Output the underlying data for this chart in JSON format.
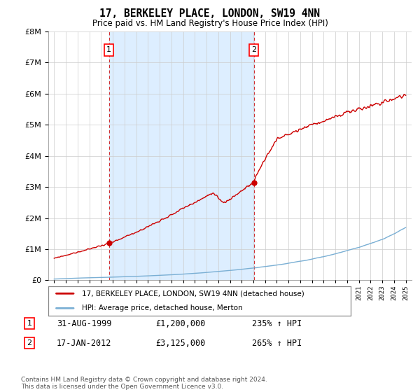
{
  "title": "17, BERKELEY PLACE, LONDON, SW19 4NN",
  "subtitle": "Price paid vs. HM Land Registry's House Price Index (HPI)",
  "legend_line1": "17, BERKELEY PLACE, LONDON, SW19 4NN (detached house)",
  "legend_line2": "HPI: Average price, detached house, Merton",
  "annotation1_date": "31-AUG-1999",
  "annotation1_price": "£1,200,000",
  "annotation1_hpi": "235% ↑ HPI",
  "annotation2_date": "17-JAN-2012",
  "annotation2_price": "£3,125,000",
  "annotation2_hpi": "265% ↑ HPI",
  "footnote": "Contains HM Land Registry data © Crown copyright and database right 2024.\nThis data is licensed under the Open Government Licence v3.0.",
  "ylim": [
    0,
    8000000
  ],
  "red_color": "#cc0000",
  "blue_color": "#7aafd4",
  "marker1_x": 1999.67,
  "marker1_y": 1200000,
  "marker2_x": 2012.05,
  "marker2_y": 3125000,
  "background_color": "#ffffff",
  "plot_bg_color": "#ffffff",
  "shaded_color": "#ddeeff",
  "grid_color": "#cccccc",
  "xmin": 1994.5,
  "xmax": 2025.5
}
